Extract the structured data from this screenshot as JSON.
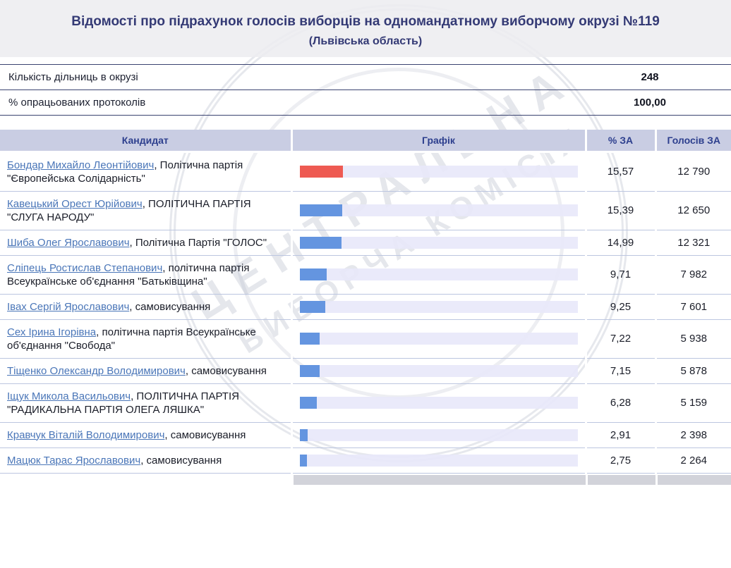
{
  "page": {
    "title": "Відомості про підрахунок голосів виборців на одномандатному виборчому окрузі №119",
    "subtitle": "(Львівська область)"
  },
  "info": {
    "rows": [
      {
        "label": "Кількість дільниць в окрузі",
        "value": "248"
      },
      {
        "label": "% опрацьованих протоколів",
        "value": "100,00"
      }
    ]
  },
  "table": {
    "headers": {
      "candidate": "Кандидат",
      "chart": "Графік",
      "percent": "% ЗА",
      "votes": "Голосів ЗА"
    },
    "rows": [
      {
        "name": "Бондар Михайло Леонтійович",
        "party": ", Політична партія \"Європейська Солідарність\"",
        "percent": "15,57",
        "percent_value": 15.57,
        "votes": "12 790",
        "bar_color": "#ee5a52"
      },
      {
        "name": "Кавецький Орест Юрійович",
        "party": ", ПОЛІТИЧНА ПАРТІЯ \"СЛУГА НАРОДУ\"",
        "percent": "15,39",
        "percent_value": 15.39,
        "votes": "12 650",
        "bar_color": "#6495e0"
      },
      {
        "name": "Шиба Олег Ярославович",
        "party": ", Політична Партія \"ГОЛОС\"",
        "percent": "14,99",
        "percent_value": 14.99,
        "votes": "12 321",
        "bar_color": "#6495e0"
      },
      {
        "name": "Сліпець Ростислав Степанович",
        "party": ", політична партія Всеукраїнське об'єднання \"Батьківщина\"",
        "percent": "9,71",
        "percent_value": 9.71,
        "votes": "7 982",
        "bar_color": "#6495e0"
      },
      {
        "name": "Івах Сергій Ярославович",
        "party": ", самовисування",
        "percent": "9,25",
        "percent_value": 9.25,
        "votes": "7 601",
        "bar_color": "#6495e0"
      },
      {
        "name": "Сех Ірина Ігорівна",
        "party": ", політична партія Всеукраїнське об'єднання \"Свобода\"",
        "percent": "7,22",
        "percent_value": 7.22,
        "votes": "5 938",
        "bar_color": "#6495e0"
      },
      {
        "name": "Тіщенко Олександр Володимирович",
        "party": ", самовисування",
        "percent": "7,15",
        "percent_value": 7.15,
        "votes": "5 878",
        "bar_color": "#6495e0"
      },
      {
        "name": "Іщук Микола Васильович",
        "party": ", ПОЛІТИЧНА ПАРТІЯ \"РАДИКАЛЬНА ПАРТІЯ ОЛЕГА ЛЯШКА\"",
        "percent": "6,28",
        "percent_value": 6.28,
        "votes": "5 159",
        "bar_color": "#6495e0"
      },
      {
        "name": "Кравчук Віталій Володимирович",
        "party": ", самовисування",
        "percent": "2,91",
        "percent_value": 2.91,
        "votes": "2 398",
        "bar_color": "#6495e0"
      },
      {
        "name": "Мацюк Тарас Ярославович",
        "party": ", самовисування",
        "percent": "2,75",
        "percent_value": 2.75,
        "votes": "2 264",
        "bar_color": "#6495e0"
      }
    ]
  },
  "watermark": {
    "line1": "ЦЕНТРАЛЬНА",
    "line2": "ВИБОРЧА КОМІСІЯ"
  },
  "colors": {
    "bar_leader": "#ee5a52",
    "bar_default": "#6495e0",
    "header_bg": "#c9cde3",
    "title_text": "#343a75"
  }
}
